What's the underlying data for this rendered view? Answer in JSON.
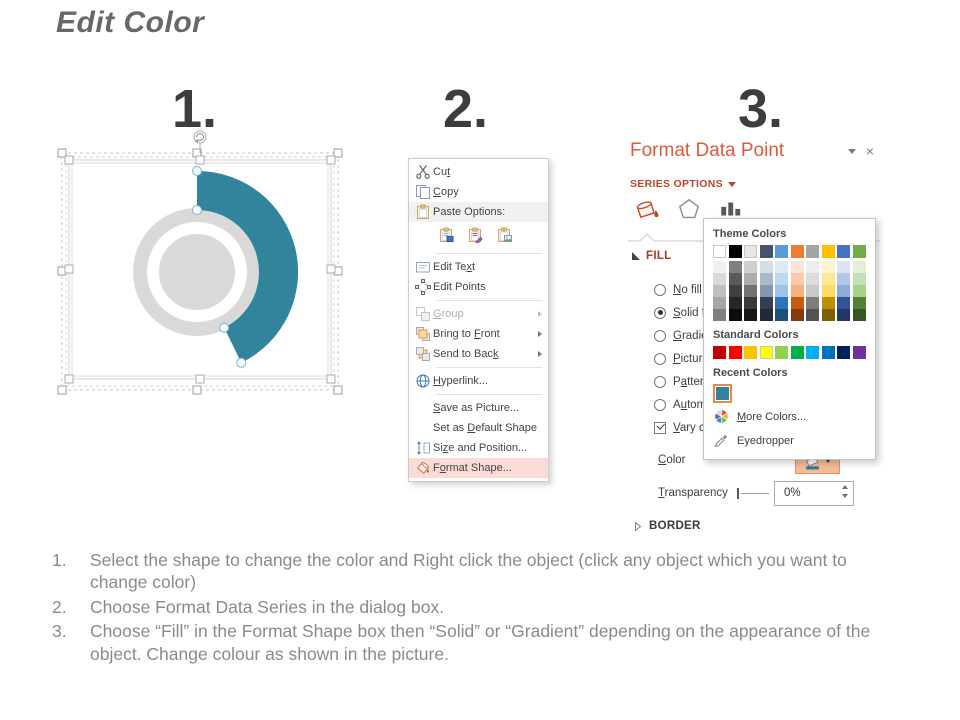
{
  "page": {
    "title": "Edit Color"
  },
  "steps": [
    "1.",
    "2.",
    "3."
  ],
  "chart": {
    "arc_color": "#31849B",
    "donut_color": "#D9D9D9"
  },
  "context_menu": {
    "items": [
      {
        "type": "item",
        "icon": "scissors-icon",
        "label": "Cut",
        "accel": 2
      },
      {
        "type": "item",
        "icon": "copy-icon",
        "label": "Copy",
        "accel": 0
      },
      {
        "type": "item",
        "icon": "clipboard-icon",
        "label": "Paste Options:",
        "accel": -1,
        "shaded": true
      },
      {
        "type": "paste-row",
        "options": [
          "paste-keep-formatting-icon",
          "paste-special-icon",
          "paste-picture-icon"
        ]
      },
      {
        "type": "sep"
      },
      {
        "type": "item",
        "icon": "edit-text-icon",
        "label": "Edit Text",
        "accel": 7
      },
      {
        "type": "item",
        "icon": "edit-points-icon",
        "label": "Edit Points",
        "accel": -1
      },
      {
        "type": "sep"
      },
      {
        "type": "item",
        "icon": "group-icon",
        "label": "Group",
        "accel": 0,
        "disabled": true,
        "submenu": true
      },
      {
        "type": "item",
        "icon": "bring-front-icon",
        "label": "Bring to Front",
        "accel": 9,
        "submenu": true
      },
      {
        "type": "item",
        "icon": "send-back-icon",
        "label": "Send to Back",
        "accel": 11,
        "submenu": true
      },
      {
        "type": "sep"
      },
      {
        "type": "item",
        "icon": "hyperlink-icon",
        "label": "Hyperlink...",
        "accel": 0
      },
      {
        "type": "sep"
      },
      {
        "type": "item",
        "icon": null,
        "label": "Save as Picture...",
        "accel": 0
      },
      {
        "type": "item",
        "icon": null,
        "label": "Set as Default Shape",
        "accel": 7
      },
      {
        "type": "item",
        "icon": "size-position-icon",
        "label": "Size and Position...",
        "accel": 2
      },
      {
        "type": "item",
        "icon": "format-shape-icon",
        "label": "Format Shape...",
        "accel": 1,
        "highlighted": true
      }
    ]
  },
  "format_panel": {
    "title": "Format Data Point",
    "close_glyph": "×",
    "section_header": "SERIES OPTIONS",
    "fill_header": "FILL",
    "border_header": "BORDER",
    "fill_options": [
      {
        "label": "No fill",
        "accel": 0,
        "checked": false
      },
      {
        "label": "Solid fill",
        "accel": 0,
        "checked": true
      },
      {
        "label": "Gradient fill",
        "accel": 0,
        "checked": false
      },
      {
        "label": "Picture or texture fill",
        "accel": 0,
        "checked": false
      },
      {
        "label": "Pattern fill",
        "accel": 1,
        "checked": false
      },
      {
        "label": "Automatic",
        "accel": 1,
        "checked": false
      }
    ],
    "vary_colors": {
      "label": "Vary colors by point",
      "accel": 0,
      "checked": true
    },
    "color_label": {
      "label": "Color",
      "accel": 0
    },
    "transparency": {
      "label": "Transparency",
      "accel": 0,
      "value": "0%"
    }
  },
  "color_picker": {
    "theme_header": "Theme Colors",
    "standard_header": "Standard Colors",
    "recent_header": "Recent Colors",
    "more_colors": {
      "label": "More Colors...",
      "accel": 0
    },
    "eyedropper": {
      "label": "Eyedropper",
      "accel": -1
    },
    "theme_colors": [
      "#FFFFFF",
      "#000000",
      "#E7E6E6",
      "#44546A",
      "#5B9BD5",
      "#ED7D31",
      "#A5A5A5",
      "#FFC000",
      "#4472C4",
      "#70AD47"
    ],
    "variants": [
      [
        "#F2F2F2",
        "#D9D9D9",
        "#BFBFBF",
        "#A6A6A6",
        "#808080"
      ],
      [
        "#7F7F7F",
        "#595959",
        "#404040",
        "#262626",
        "#0D0D0D"
      ],
      [
        "#D0CECE",
        "#AEABAB",
        "#757171",
        "#3B3838",
        "#161616"
      ],
      [
        "#D6DCE4",
        "#ACB9CA",
        "#8497B0",
        "#333F50",
        "#222A35"
      ],
      [
        "#DEEBF7",
        "#BDD7EE",
        "#9DC3E6",
        "#2E75B6",
        "#1F4E79"
      ],
      [
        "#FBE5D6",
        "#F8CBAD",
        "#F4B183",
        "#C55A11",
        "#843C0C"
      ],
      [
        "#EDEDED",
        "#DBDBDB",
        "#C9C9C9",
        "#7C7C7C",
        "#525252"
      ],
      [
        "#FFF2CC",
        "#FFE699",
        "#FFD966",
        "#BF9000",
        "#7F6000"
      ],
      [
        "#DAE3F3",
        "#B4C7E7",
        "#8FAADC",
        "#2F5597",
        "#203864"
      ],
      [
        "#E2F0D9",
        "#C6E0B4",
        "#A9D18E",
        "#548235",
        "#375623"
      ]
    ],
    "standard_colors": [
      "#C00000",
      "#FF0000",
      "#FFC000",
      "#FFFF00",
      "#92D050",
      "#00B050",
      "#00B0F0",
      "#0070C0",
      "#002060",
      "#7030A0"
    ],
    "recent_colors": [
      "#31849B"
    ]
  },
  "instructions": [
    {
      "number": "1.",
      "text": "Select the shape to change the color and Right click the object (click any object which you want to change color)"
    },
    {
      "number": "2.",
      "text": "Choose Format Data Series in the dialog box."
    },
    {
      "number": "3.",
      "text": "Choose “Fill” in the Format Shape box then “Solid” or “Gradient” depending on the appearance of the object. Change colour as shown in the picture."
    }
  ]
}
